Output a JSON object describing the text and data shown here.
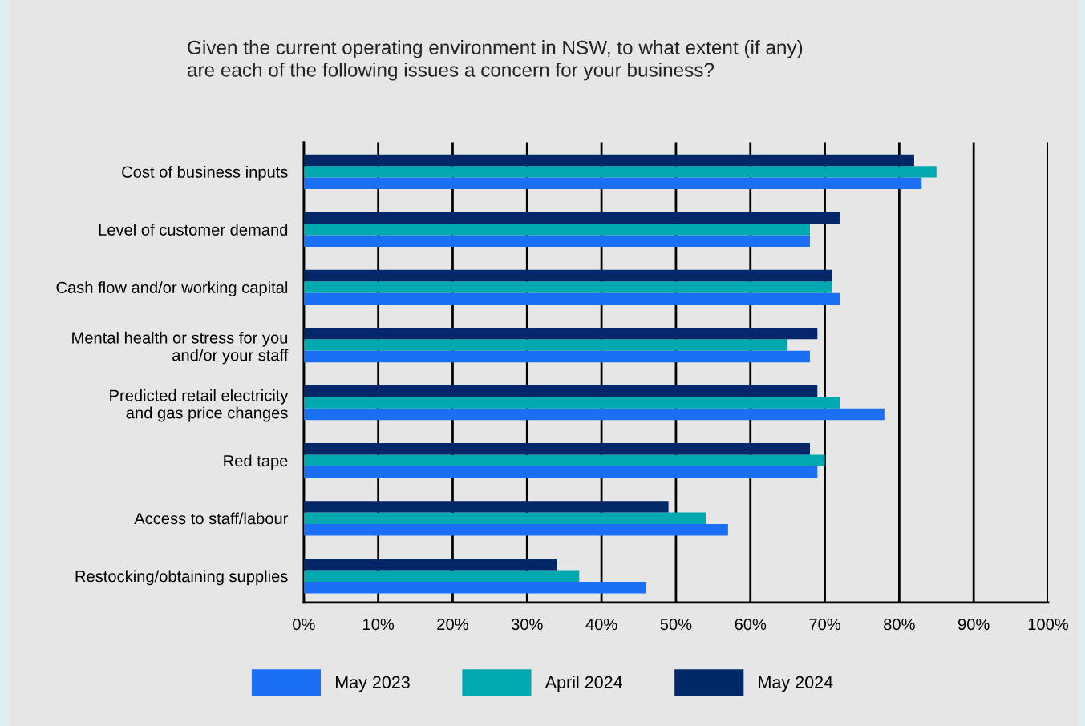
{
  "chart_data": {
    "type": "bar",
    "orientation": "horizontal",
    "title": "Given the current operating environment in NSW, to what extent (if any)\nare each of the following issues a concern for your business?",
    "categories": [
      "Cost of business inputs",
      "Level of customer demand",
      "Cash flow and/or working capital",
      "Mental health or stress for you\nand/or your staff",
      "Predicted retail electricity\nand gas price changes",
      "Red tape",
      "Access to staff/labour",
      "Restocking/obtaining supplies"
    ],
    "series": [
      {
        "name": "May 2023",
        "color": "#1a6ff5",
        "values": [
          83,
          68,
          72,
          68,
          78,
          69,
          57,
          46
        ]
      },
      {
        "name": "April 2024",
        "color": "#00a8b0",
        "values": [
          85,
          68,
          71,
          65,
          72,
          70,
          54,
          37
        ]
      },
      {
        "name": "May 2024",
        "color": "#002868",
        "values": [
          82,
          72,
          71,
          69,
          69,
          68,
          49,
          34
        ]
      }
    ],
    "xlim": [
      0,
      100
    ],
    "xticks": [
      {
        "value": 0,
        "label": "0%"
      },
      {
        "value": 10,
        "label": "10%"
      },
      {
        "value": 20,
        "label": "20%"
      },
      {
        "value": 30,
        "label": "30%"
      },
      {
        "value": 40,
        "label": "40%"
      },
      {
        "value": 50,
        "label": "50%"
      },
      {
        "value": 60,
        "label": "60%"
      },
      {
        "value": 70,
        "label": "70%"
      },
      {
        "value": 80,
        "label": "80%"
      },
      {
        "value": 90,
        "label": "90%"
      },
      {
        "value": 100,
        "label": "100%"
      }
    ],
    "grid": "x",
    "legend": "bottom"
  }
}
